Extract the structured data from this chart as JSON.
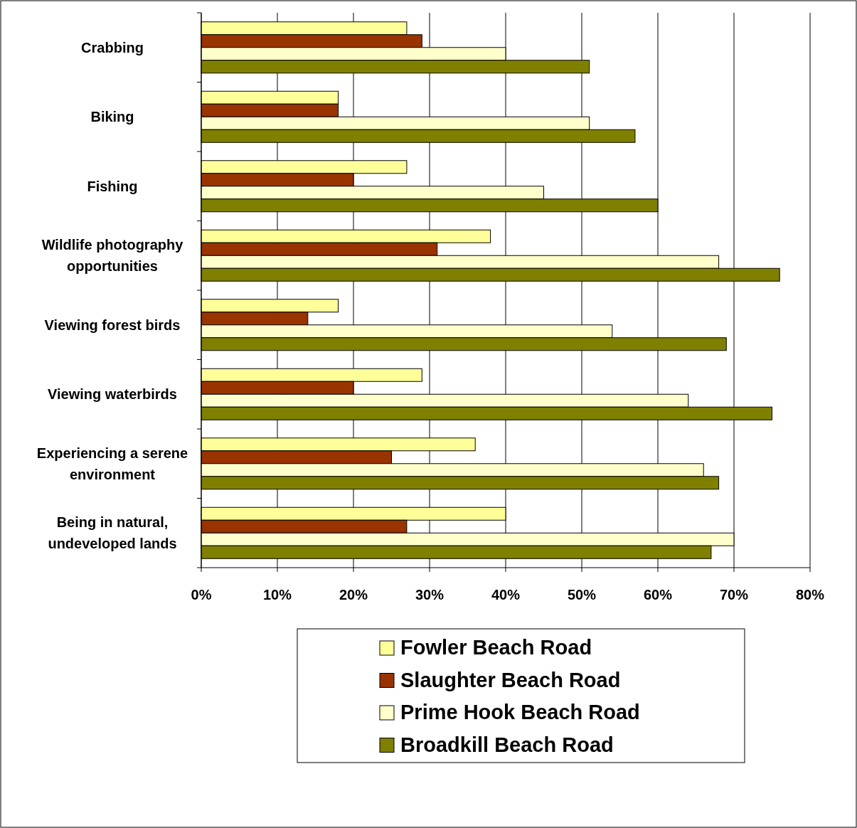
{
  "chart_data": {
    "type": "bar",
    "orientation": "horizontal",
    "categories": [
      "Crabbing",
      "Biking",
      "Fishing",
      "Wildlife photography opportunities",
      "Viewing forest birds",
      "Viewing waterbirds",
      "Experiencing a serene environment",
      "Being in natural, undeveloped lands"
    ],
    "series": [
      {
        "name": "Fowler Beach Road",
        "color": "#ffff99",
        "values": [
          27,
          18,
          27,
          38,
          18,
          29,
          36,
          40
        ]
      },
      {
        "name": "Slaughter Beach Road",
        "color": "#993300",
        "values": [
          29,
          18,
          20,
          31,
          14,
          20,
          25,
          27
        ]
      },
      {
        "name": "Prime Hook Beach Road",
        "color": "#ffffcc",
        "values": [
          40,
          51,
          45,
          68,
          54,
          64,
          66,
          70
        ]
      },
      {
        "name": "Broadkill Beach Road",
        "color": "#808000",
        "values": [
          51,
          57,
          60,
          76,
          69,
          75,
          68,
          67
        ]
      }
    ],
    "xlim": [
      0,
      80
    ],
    "xticks": [
      {
        "value": 0,
        "label": "0%"
      },
      {
        "value": 10,
        "label": "10%"
      },
      {
        "value": 20,
        "label": "20%"
      },
      {
        "value": 30,
        "label": "30%"
      },
      {
        "value": 40,
        "label": "40%"
      },
      {
        "value": 50,
        "label": "50%"
      },
      {
        "value": 60,
        "label": "60%"
      },
      {
        "value": 70,
        "label": "70%"
      },
      {
        "value": 80,
        "label": "80%"
      }
    ],
    "grid": "x",
    "legend": "bottom"
  }
}
